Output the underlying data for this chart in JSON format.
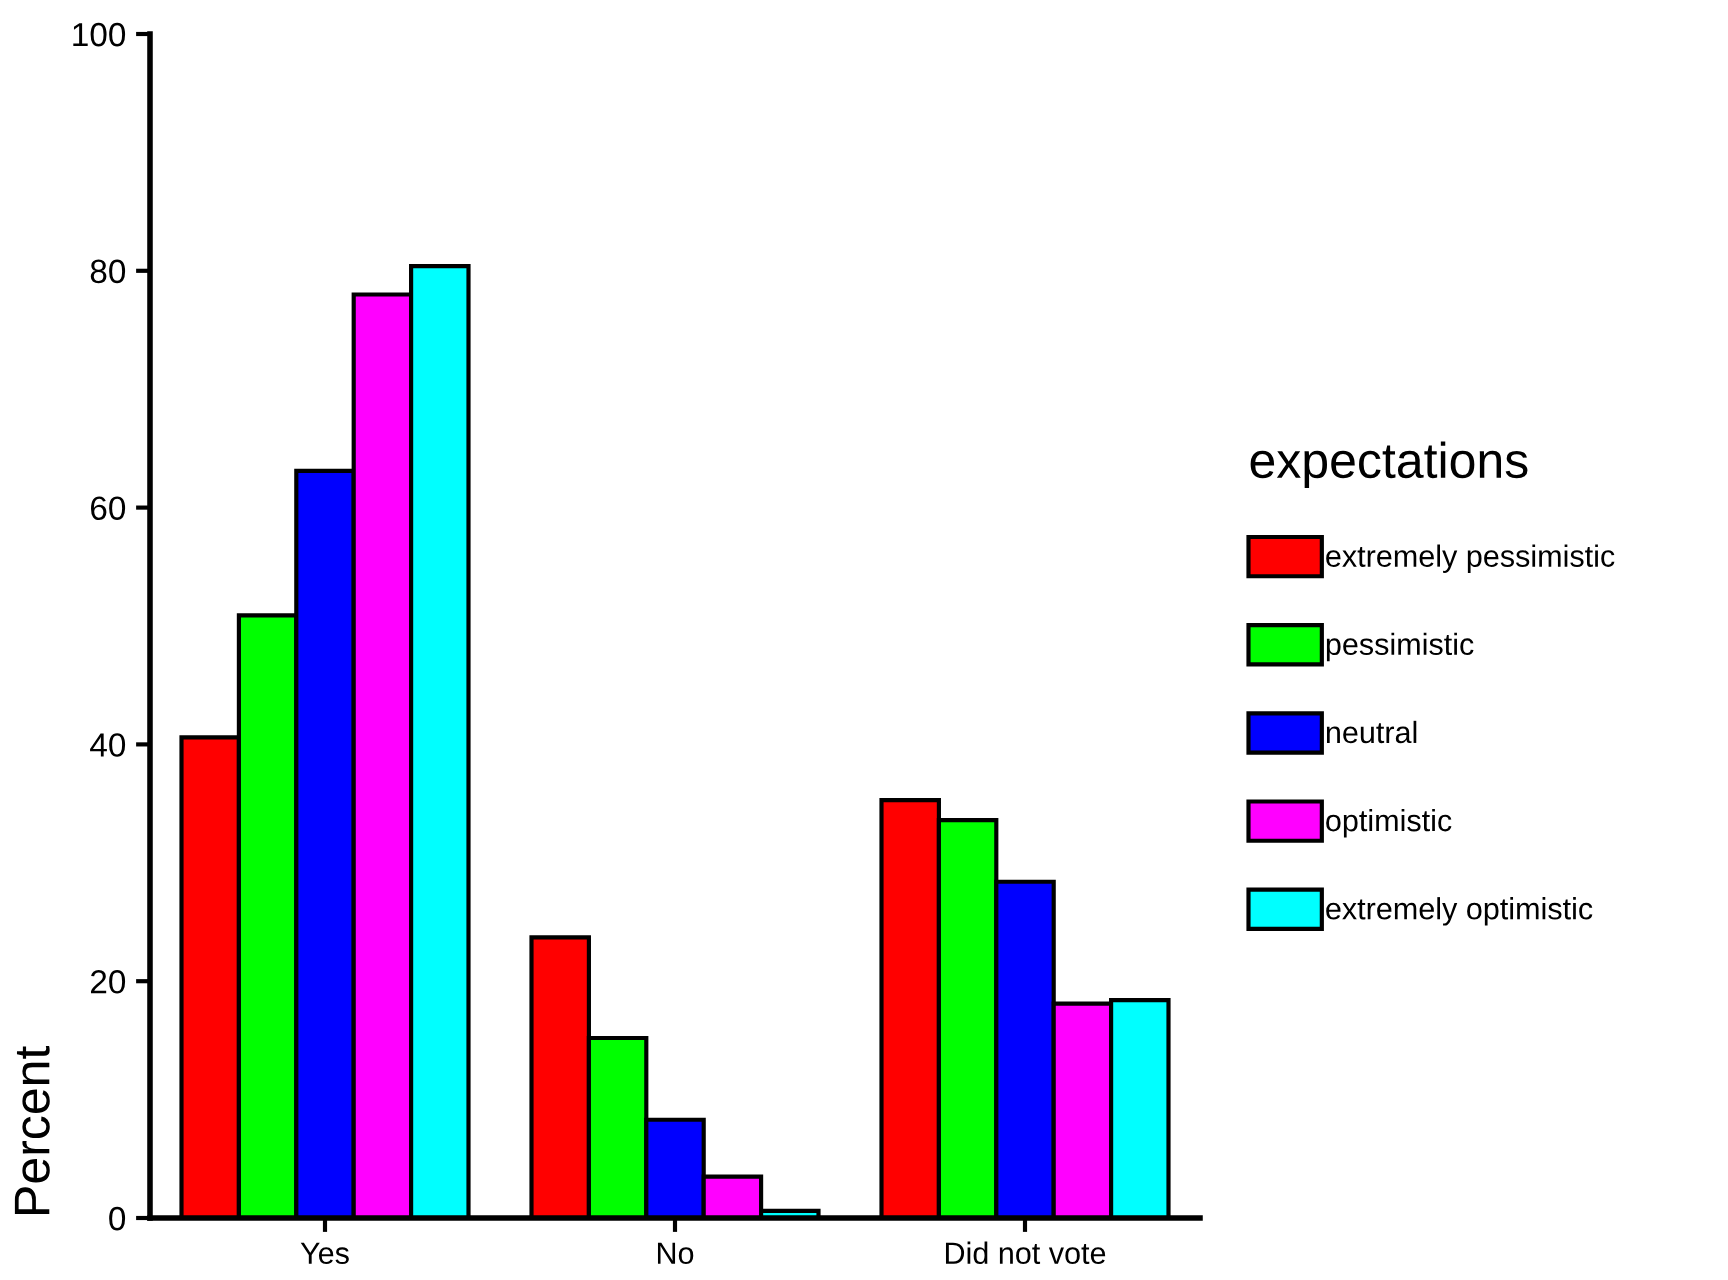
{
  "chart_data": {
    "type": "bar",
    "ylabel": "Percent",
    "legend_title": "expectations",
    "categories": [
      "Yes",
      "No",
      "Did not vote"
    ],
    "series": [
      {
        "name": "extremely pessimistic",
        "color": "#ff0000",
        "values": [
          40.6,
          23.7,
          35.3
        ]
      },
      {
        "name": "pessimistic",
        "color": "#00ff00",
        "values": [
          50.9,
          15.2,
          33.6
        ]
      },
      {
        "name": "neutral",
        "color": "#0000ff",
        "values": [
          63.1,
          8.3,
          28.4
        ]
      },
      {
        "name": "optimistic",
        "color": "#ff00ff",
        "values": [
          78.0,
          3.5,
          18.1
        ]
      },
      {
        "name": "extremely optimistic",
        "color": "#00ffff",
        "values": [
          80.4,
          0.6,
          18.4
        ]
      }
    ],
    "ylim": [
      0,
      100
    ],
    "yticks": [
      0,
      20,
      40,
      60,
      80,
      100
    ],
    "grid": false,
    "legend": "right"
  }
}
